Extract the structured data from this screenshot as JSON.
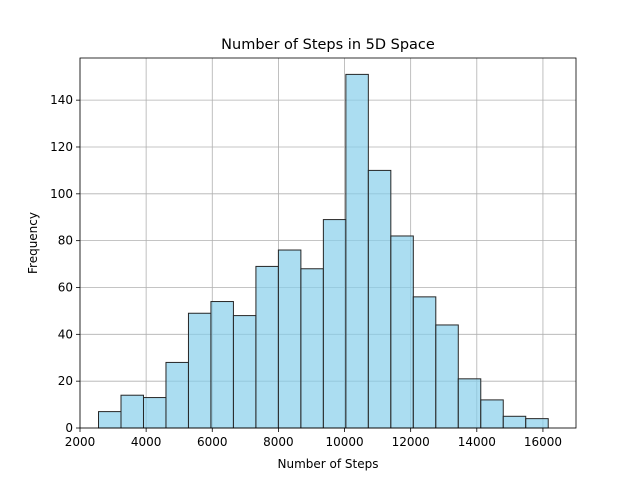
{
  "chart_data": {
    "type": "bar",
    "title": "Number of Steps in 5D Space",
    "xlabel": "Number of Steps",
    "ylabel": "Frequency",
    "xlim": [
      2000,
      17000
    ],
    "ylim": [
      0,
      158
    ],
    "xticks": [
      2000,
      4000,
      6000,
      8000,
      10000,
      12000,
      14000,
      16000
    ],
    "yticks": [
      0,
      20,
      40,
      60,
      80,
      100,
      120,
      140
    ],
    "grid": true,
    "bar_color": "#87ceeb",
    "bar_edge_color": "#262626",
    "bins": [
      [
        2560,
        3240,
        7
      ],
      [
        3240,
        3920,
        14
      ],
      [
        3920,
        4600,
        13
      ],
      [
        4600,
        5280,
        28
      ],
      [
        5280,
        5960,
        49
      ],
      [
        5960,
        6640,
        54
      ],
      [
        6640,
        7320,
        48
      ],
      [
        7320,
        8000,
        69
      ],
      [
        8000,
        8680,
        76
      ],
      [
        8680,
        9360,
        68
      ],
      [
        9360,
        10040,
        89
      ],
      [
        10040,
        10720,
        151
      ],
      [
        10720,
        11400,
        110
      ],
      [
        11400,
        12080,
        82
      ],
      [
        12080,
        12760,
        56
      ],
      [
        12760,
        13440,
        44
      ],
      [
        13440,
        14120,
        21
      ],
      [
        14120,
        14800,
        12
      ],
      [
        14800,
        15480,
        5
      ],
      [
        15480,
        16160,
        4
      ]
    ]
  }
}
